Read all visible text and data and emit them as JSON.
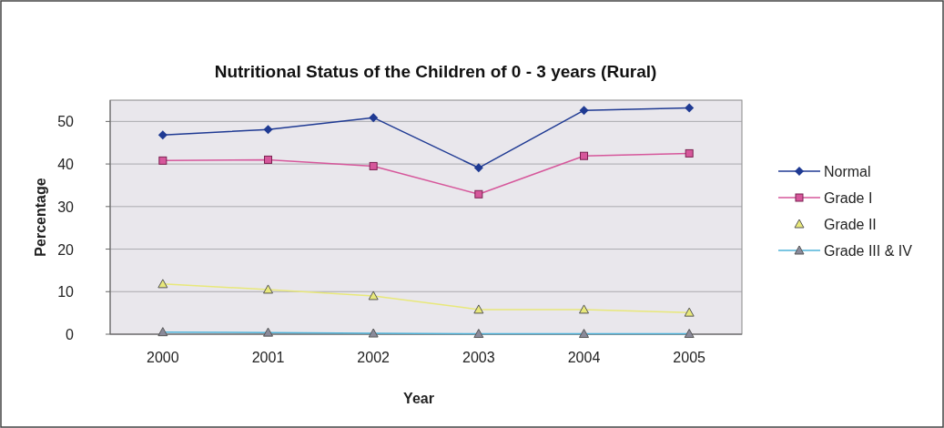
{
  "chart_data": {
    "type": "line",
    "title": "Nutritional Status of the Children of 0 - 3 years (Rural)",
    "xlabel": "Year",
    "ylabel": "Percentage",
    "categories": [
      "2000",
      "2001",
      "2002",
      "2003",
      "2004",
      "2005"
    ],
    "series": [
      {
        "name": "Normal",
        "color": "#1f3a93",
        "marker": "diamond",
        "values": [
          46.8,
          48.1,
          50.9,
          39.1,
          52.6,
          53.2
        ]
      },
      {
        "name": "Grade I",
        "color": "#d6579b",
        "marker": "square",
        "values": [
          40.8,
          41.0,
          39.5,
          32.9,
          41.9,
          42.5
        ]
      },
      {
        "name": "Grade II",
        "color": "#e8e87a",
        "marker": "triangle",
        "values": [
          11.8,
          10.5,
          9.0,
          5.8,
          5.8,
          5.1
        ]
      },
      {
        "name": "Grade III & IV",
        "color": "#4fb3d9",
        "marker": "triangle",
        "values": [
          0.5,
          0.4,
          0.2,
          0.1,
          0.1,
          0.1
        ]
      }
    ],
    "ylim": [
      0,
      55
    ],
    "yticks": [
      0,
      10,
      20,
      30,
      40,
      50
    ],
    "grid": "y",
    "legend": "right"
  }
}
